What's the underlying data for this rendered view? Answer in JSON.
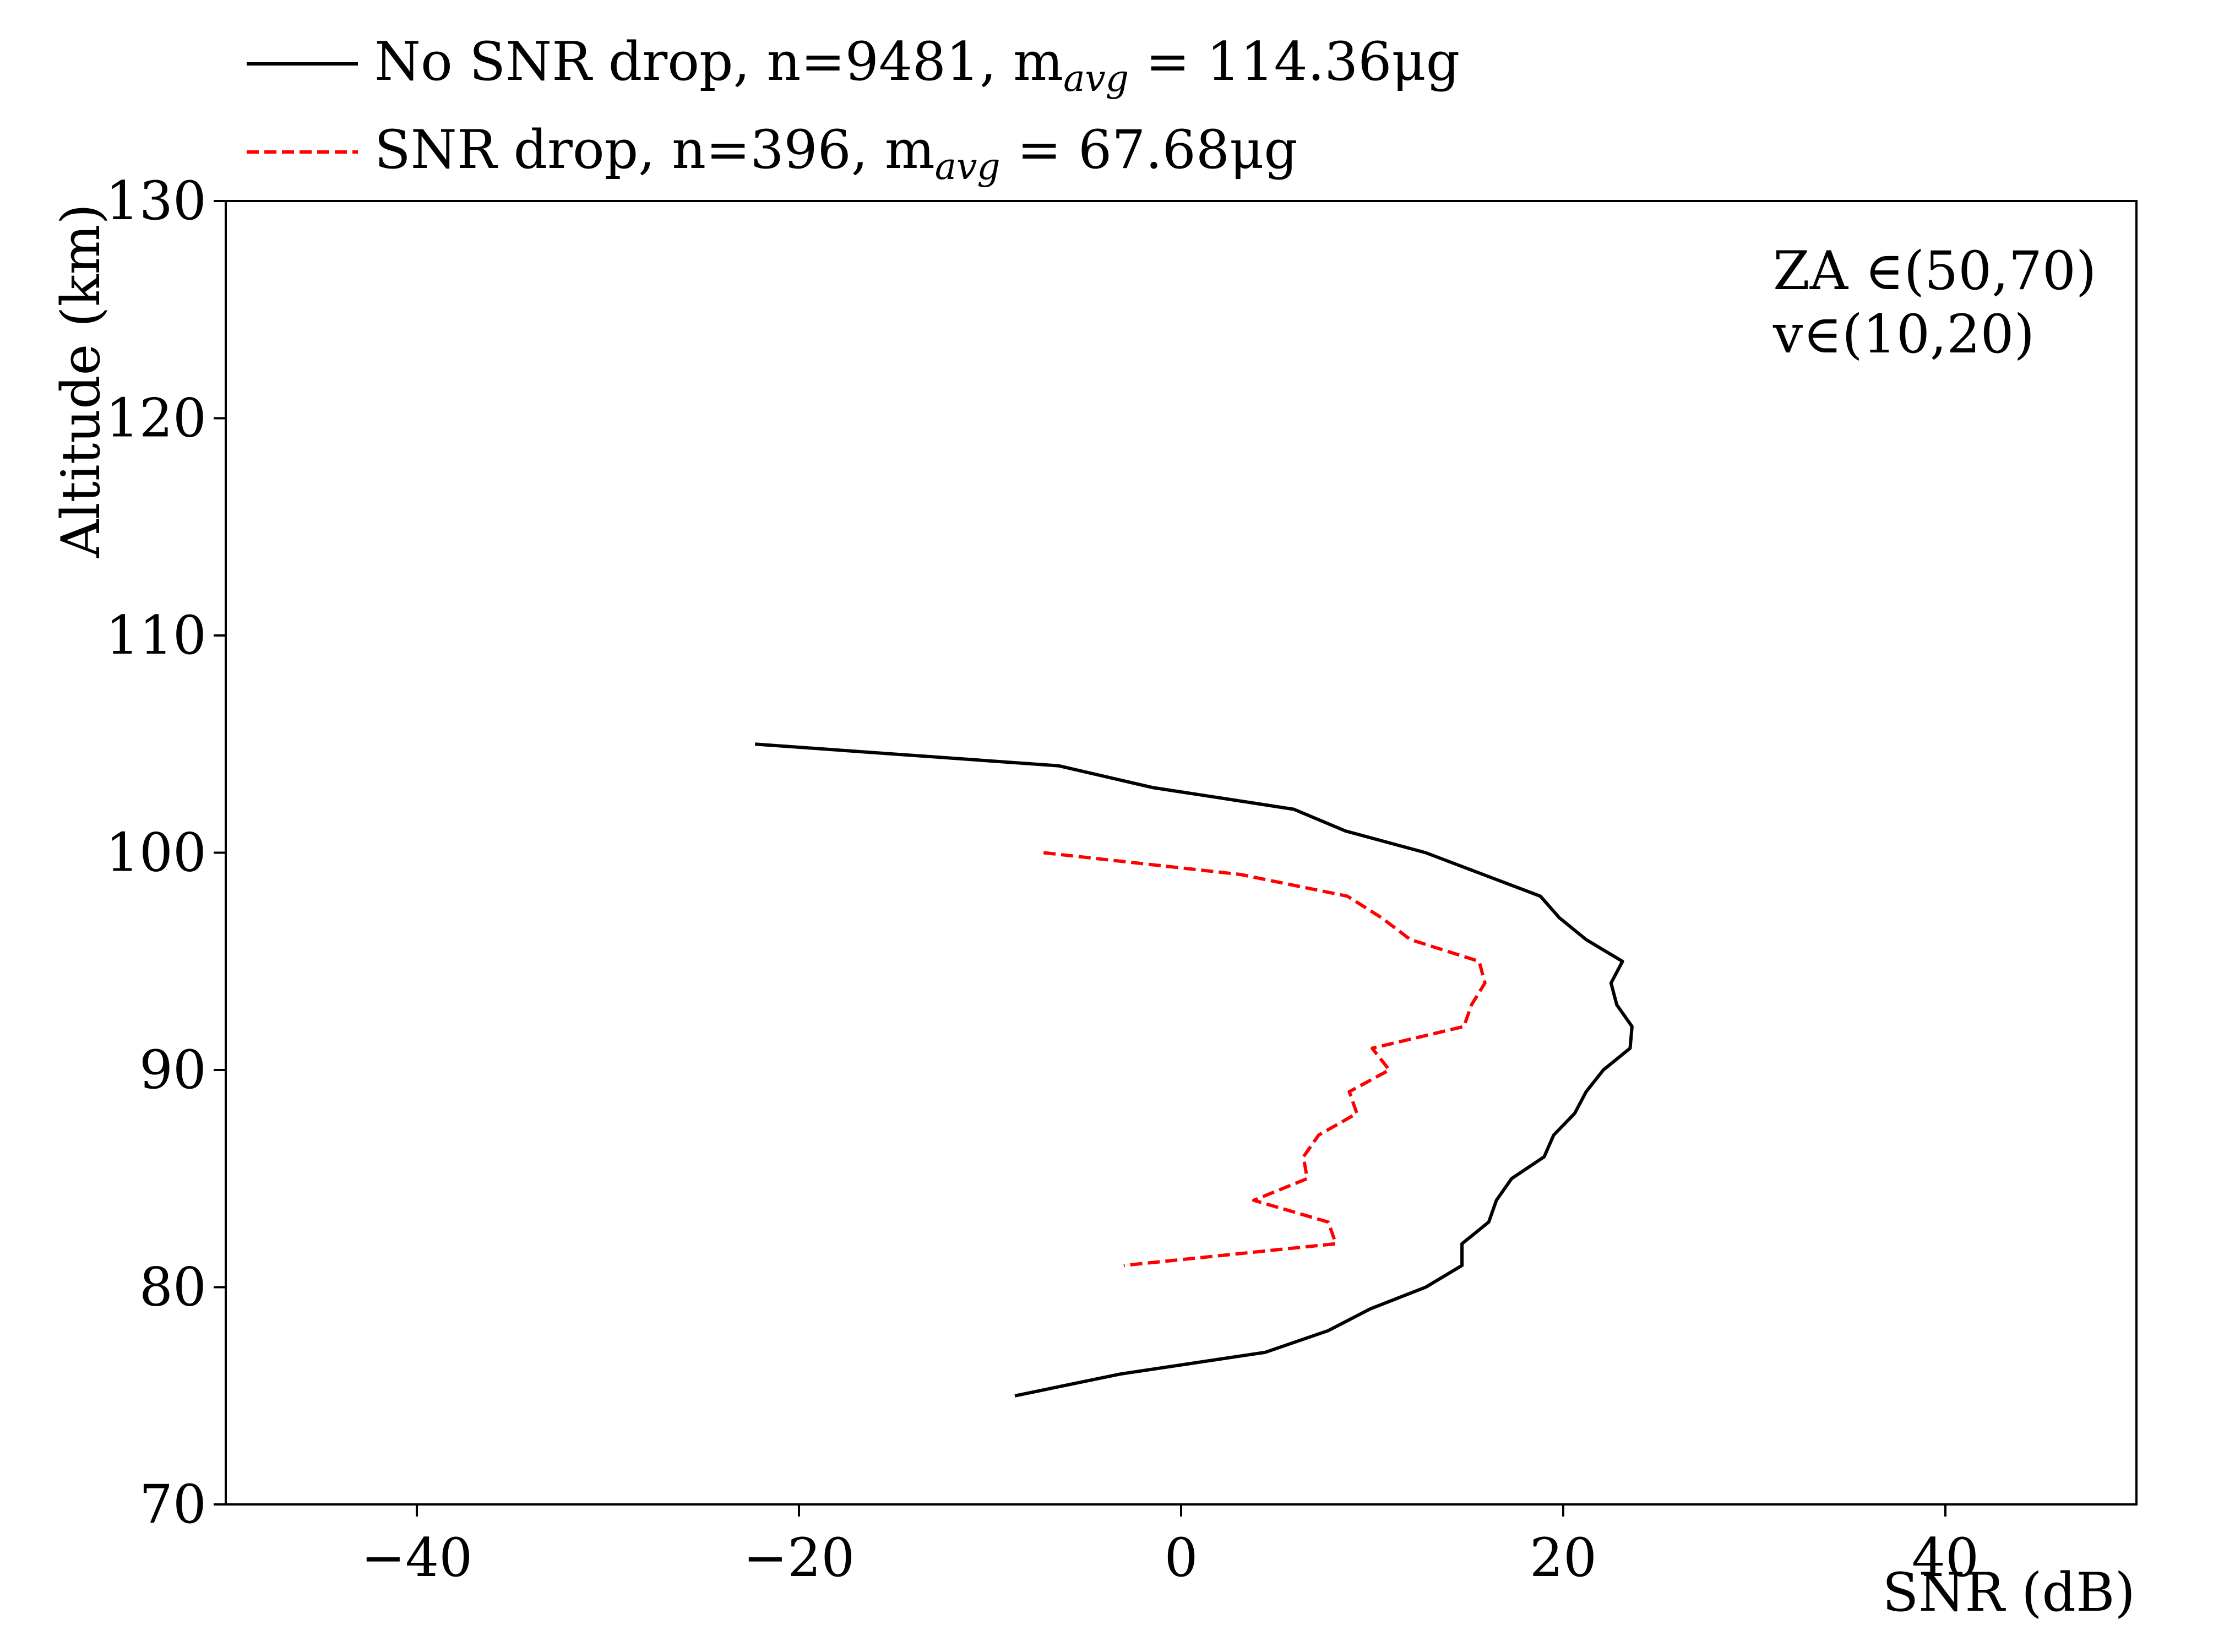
{
  "chart_data": {
    "type": "line",
    "xlabel": "SNR (dB)",
    "ylabel": "Altitude (km)",
    "xlim": [
      -50,
      50
    ],
    "ylim": [
      70,
      130
    ],
    "xticks": [
      -40,
      -20,
      0,
      20,
      40
    ],
    "xtick_labels": [
      "−40",
      "−20",
      "0",
      "20",
      "40"
    ],
    "yticks": [
      70,
      80,
      90,
      100,
      110,
      120,
      130
    ],
    "ytick_labels": [
      "70",
      "80",
      "90",
      "100",
      "110",
      "120",
      "130"
    ],
    "grid": false,
    "legend_position": "top-left outside",
    "annotation": {
      "line1": "ZA ∈(50,70)",
      "line2": "v∈(10,20)"
    },
    "series": [
      {
        "name_main": "No SNR drop,  n=9481,  m",
        "name_sub": "avg",
        "name_tail": " = 114.36μg",
        "color": "#000000",
        "dash": "solid",
        "points": [
          [
            -22.3,
            105
          ],
          [
            -6.4,
            104
          ],
          [
            -1.5,
            103
          ],
          [
            5.9,
            102
          ],
          [
            8.6,
            101
          ],
          [
            12.8,
            100
          ],
          [
            15.8,
            99
          ],
          [
            18.8,
            98
          ],
          [
            19.8,
            97
          ],
          [
            21.2,
            96
          ],
          [
            23.1,
            95
          ],
          [
            22.5,
            94
          ],
          [
            22.8,
            93
          ],
          [
            23.6,
            92
          ],
          [
            23.5,
            91
          ],
          [
            22.1,
            90
          ],
          [
            21.2,
            89
          ],
          [
            20.6,
            88
          ],
          [
            19.5,
            87
          ],
          [
            19.0,
            86
          ],
          [
            17.3,
            85
          ],
          [
            16.5,
            84
          ],
          [
            16.1,
            83
          ],
          [
            14.7,
            82
          ],
          [
            14.7,
            81
          ],
          [
            12.8,
            80
          ],
          [
            9.9,
            79
          ],
          [
            7.7,
            78
          ],
          [
            4.4,
            77
          ],
          [
            -3.2,
            76
          ],
          [
            -8.7,
            75
          ]
        ]
      },
      {
        "name_main": "SNR drop,  n=396,  m",
        "name_sub": "avg",
        "name_tail": " = 67.68μg",
        "color": "#ff0000",
        "dash": "dashed",
        "points": [
          [
            -7.2,
            100
          ],
          [
            3.1,
            99
          ],
          [
            8.7,
            98
          ],
          [
            10.5,
            97
          ],
          [
            12.0,
            96
          ],
          [
            15.6,
            95
          ],
          [
            15.9,
            94
          ],
          [
            15.2,
            93
          ],
          [
            14.8,
            92
          ],
          [
            10.0,
            91
          ],
          [
            10.9,
            90
          ],
          [
            8.8,
            89
          ],
          [
            9.2,
            88
          ],
          [
            7.2,
            87
          ],
          [
            6.4,
            86
          ],
          [
            6.6,
            85
          ],
          [
            3.8,
            84
          ],
          [
            7.7,
            83
          ],
          [
            8.1,
            82
          ],
          [
            -3.0,
            81
          ]
        ]
      }
    ]
  }
}
